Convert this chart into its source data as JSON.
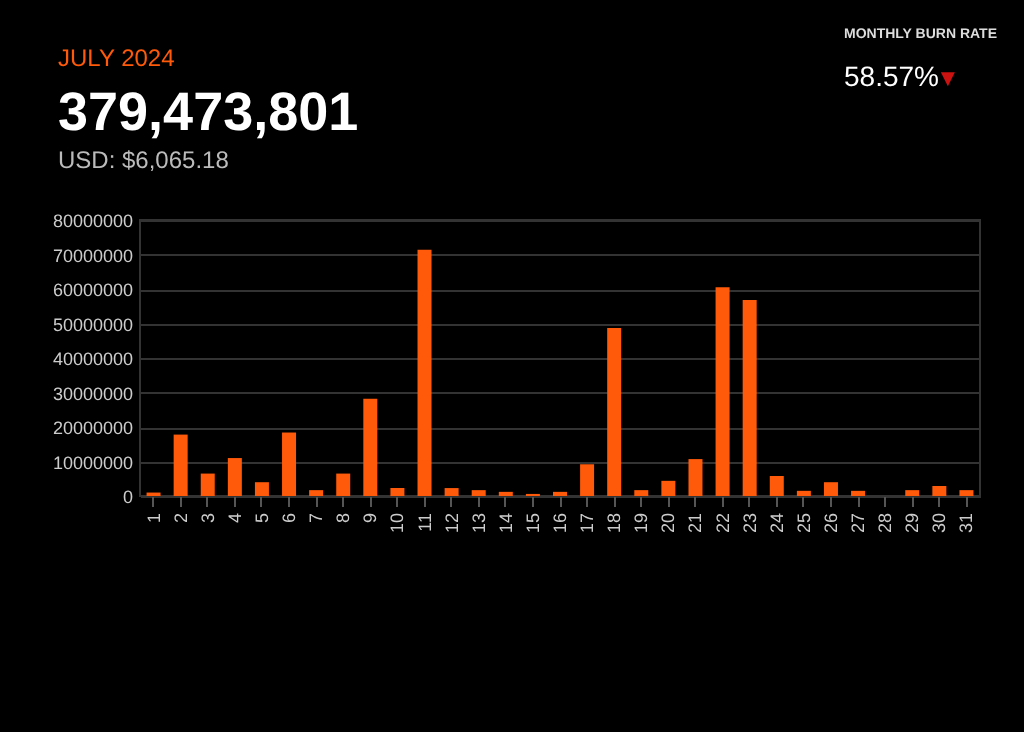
{
  "chart_data": {
    "type": "bar",
    "title": "JULY 2024",
    "subtitle": "379,473,801",
    "annotations": [
      "USD: $6,065.18",
      "MONTHLY BURN RATE",
      "58.57%",
      "▼"
    ],
    "categories": [
      "1",
      "2",
      "3",
      "4",
      "5",
      "6",
      "7",
      "8",
      "9",
      "10",
      "11",
      "12",
      "13",
      "14",
      "15",
      "16",
      "17",
      "18",
      "19",
      "20",
      "21",
      "22",
      "23",
      "24",
      "25",
      "26",
      "27",
      "28",
      "29",
      "30",
      "31"
    ],
    "values": [
      1000000,
      17800000,
      6500000,
      11000000,
      4000000,
      18400000,
      1700000,
      6500000,
      28200000,
      2300000,
      71400000,
      2300000,
      1700000,
      1200000,
      600000,
      1200000,
      9200000,
      48700000,
      1700000,
      4400000,
      10700000,
      60500000,
      56800000,
      5800000,
      1500000,
      4000000,
      1500000,
      0,
      1700000,
      2900000,
      1700000
    ],
    "color": "#ff5a0a",
    "ylim": [
      0,
      80000000
    ],
    "yticks": [
      0,
      10000000,
      20000000,
      30000000,
      40000000,
      50000000,
      60000000,
      70000000,
      80000000
    ],
    "grid": "y"
  }
}
